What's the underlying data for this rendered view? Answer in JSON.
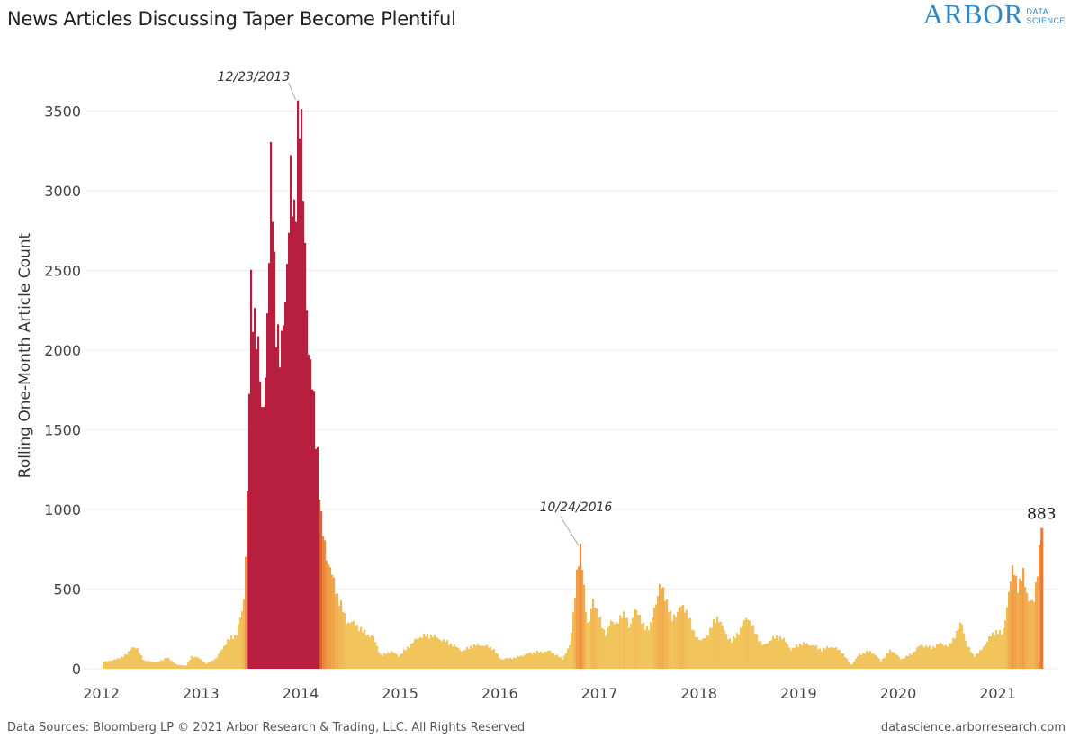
{
  "chart_data": {
    "type": "bar",
    "title": "News Articles Discussing Taper Become Plentiful",
    "ylabel": "Rolling One-Month Article Count",
    "xlabel": "",
    "ylim": [
      0,
      3700
    ],
    "xlim": [
      2011.85,
      2021.6
    ],
    "y_ticks": [
      0,
      500,
      1000,
      1500,
      2000,
      2500,
      3000,
      3500
    ],
    "x_ticks": [
      2012,
      2013,
      2014,
      2015,
      2016,
      2017,
      2018,
      2019,
      2020,
      2021
    ],
    "grid": "horizontal",
    "legend": "none",
    "color_scale": {
      "low": "#f2c45c",
      "mid": "#ef8b3a",
      "high": "#b81e3e"
    },
    "keypoints": [
      [
        2012.0,
        40
      ],
      [
        2012.15,
        60
      ],
      [
        2012.25,
        90
      ],
      [
        2012.3,
        140
      ],
      [
        2012.36,
        120
      ],
      [
        2012.42,
        50
      ],
      [
        2012.55,
        40
      ],
      [
        2012.65,
        70
      ],
      [
        2012.75,
        25
      ],
      [
        2012.85,
        20
      ],
      [
        2012.9,
        80
      ],
      [
        2012.96,
        70
      ],
      [
        2013.05,
        30
      ],
      [
        2013.15,
        70
      ],
      [
        2013.25,
        170
      ],
      [
        2013.35,
        220
      ],
      [
        2013.42,
        400
      ],
      [
        2013.46,
        1100
      ],
      [
        2013.49,
        2300
      ],
      [
        2013.55,
        2180
      ],
      [
        2013.61,
        1500
      ],
      [
        2013.66,
        2250
      ],
      [
        2013.7,
        3180
      ],
      [
        2013.74,
        2300
      ],
      [
        2013.79,
        1860
      ],
      [
        2013.84,
        2400
      ],
      [
        2013.89,
        3000
      ],
      [
        2013.93,
        2800
      ],
      [
        2013.97,
        3560
      ],
      [
        2013.99,
        3400
      ],
      [
        2014.03,
        2800
      ],
      [
        2014.08,
        1900
      ],
      [
        2014.12,
        1700
      ],
      [
        2014.16,
        1400
      ],
      [
        2014.2,
        900
      ],
      [
        2014.26,
        700
      ],
      [
        2014.32,
        550
      ],
      [
        2014.38,
        430
      ],
      [
        2014.45,
        300
      ],
      [
        2014.55,
        280
      ],
      [
        2014.62,
        230
      ],
      [
        2014.72,
        200
      ],
      [
        2014.8,
        80
      ],
      [
        2014.9,
        110
      ],
      [
        2014.98,
        80
      ],
      [
        2015.08,
        140
      ],
      [
        2015.18,
        200
      ],
      [
        2015.3,
        210
      ],
      [
        2015.42,
        180
      ],
      [
        2015.52,
        150
      ],
      [
        2015.62,
        110
      ],
      [
        2015.7,
        140
      ],
      [
        2015.8,
        150
      ],
      [
        2015.92,
        130
      ],
      [
        2016.0,
        60
      ],
      [
        2016.15,
        70
      ],
      [
        2016.3,
        100
      ],
      [
        2016.5,
        110
      ],
      [
        2016.62,
        60
      ],
      [
        2016.7,
        150
      ],
      [
        2016.76,
        570
      ],
      [
        2016.81,
        750
      ],
      [
        2016.85,
        420
      ],
      [
        2016.88,
        240
      ],
      [
        2016.93,
        450
      ],
      [
        2016.98,
        330
      ],
      [
        2017.05,
        220
      ],
      [
        2017.12,
        300
      ],
      [
        2017.18,
        290
      ],
      [
        2017.25,
        360
      ],
      [
        2017.3,
        240
      ],
      [
        2017.35,
        400
      ],
      [
        2017.42,
        280
      ],
      [
        2017.5,
        250
      ],
      [
        2017.55,
        400
      ],
      [
        2017.6,
        520
      ],
      [
        2017.66,
        450
      ],
      [
        2017.72,
        300
      ],
      [
        2017.8,
        390
      ],
      [
        2017.88,
        360
      ],
      [
        2017.93,
        230
      ],
      [
        2018.02,
        170
      ],
      [
        2018.1,
        240
      ],
      [
        2018.18,
        330
      ],
      [
        2018.26,
        220
      ],
      [
        2018.32,
        170
      ],
      [
        2018.4,
        240
      ],
      [
        2018.48,
        330
      ],
      [
        2018.56,
        220
      ],
      [
        2018.64,
        140
      ],
      [
        2018.72,
        190
      ],
      [
        2018.82,
        200
      ],
      [
        2018.92,
        120
      ],
      [
        2019.02,
        160
      ],
      [
        2019.12,
        150
      ],
      [
        2019.22,
        120
      ],
      [
        2019.32,
        140
      ],
      [
        2019.42,
        110
      ],
      [
        2019.52,
        20
      ],
      [
        2019.6,
        90
      ],
      [
        2019.72,
        110
      ],
      [
        2019.82,
        50
      ],
      [
        2019.92,
        120
      ],
      [
        2020.02,
        60
      ],
      [
        2020.12,
        90
      ],
      [
        2020.22,
        150
      ],
      [
        2020.32,
        130
      ],
      [
        2020.42,
        160
      ],
      [
        2020.5,
        140
      ],
      [
        2020.58,
        230
      ],
      [
        2020.63,
        290
      ],
      [
        2020.68,
        150
      ],
      [
        2020.75,
        80
      ],
      [
        2020.82,
        110
      ],
      [
        2020.9,
        190
      ],
      [
        2020.98,
        240
      ],
      [
        2021.04,
        210
      ],
      [
        2021.1,
        460
      ],
      [
        2021.15,
        650
      ],
      [
        2021.2,
        500
      ],
      [
        2021.25,
        600
      ],
      [
        2021.3,
        430
      ],
      [
        2021.35,
        400
      ],
      [
        2021.4,
        680
      ],
      [
        2021.44,
        883
      ]
    ],
    "annotations": [
      {
        "label": "12/23/2013",
        "x": 2013.97,
        "y": 3560
      },
      {
        "label": "10/24/2016",
        "x": 2016.81,
        "y": 750
      },
      {
        "label": "883",
        "x": 2021.44,
        "y": 883
      }
    ]
  },
  "footer": {
    "source": "Data Sources: Bloomberg LP © 2021 Arbor Research & Trading, LLC. All Rights Reserved",
    "url": "datascience.arborresearch.com"
  },
  "logo": {
    "main": "ARBOR",
    "sub_1": "DATA",
    "sub_2": "SCIENCE"
  }
}
